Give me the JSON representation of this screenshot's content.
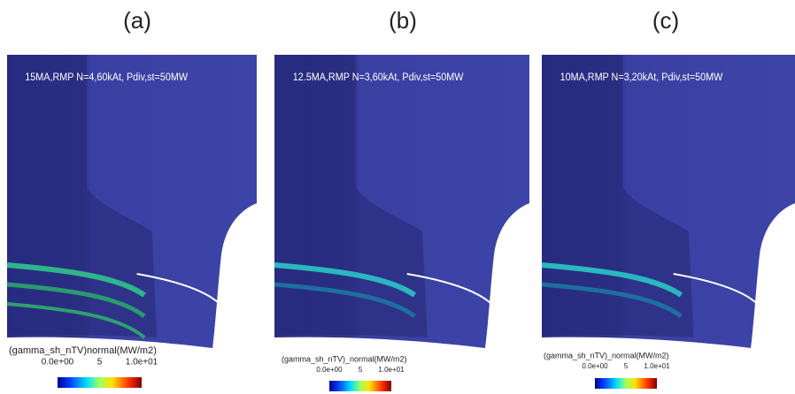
{
  "panels": [
    {
      "label": "(a)",
      "caption": "15MA,RMP N=4,60kAt, Pdiv,st=50MW",
      "colorbar": {
        "title": "(gamma_sh_nTV)normal(MW/m2)",
        "ticks": [
          "0.0e+00",
          "5",
          "1.0e+01"
        ]
      }
    },
    {
      "label": "(b)",
      "caption": "12.5MA,RMP N=3,60kAt, Pdiv,st=50MW",
      "colorbar": {
        "title": "(gamma_sh_nTV)_normal(MW/m2)",
        "ticks": [
          "0.0e+00",
          "5",
          "1.0e+01"
        ]
      }
    },
    {
      "label": "(c)",
      "caption": "10MA,RMP N=3,20kAt, Pdiv,st=50MW",
      "colorbar": {
        "title": "(gamma_sh_nTV)_normal(MW/m2)",
        "ticks": [
          "0.0e+00",
          "5",
          "1.0e+01"
        ]
      }
    }
  ]
}
